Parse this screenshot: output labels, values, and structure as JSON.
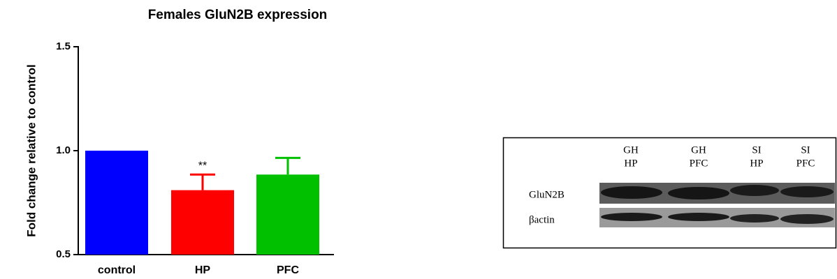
{
  "chart_data": {
    "type": "bar",
    "title": "Females GluN2B expression",
    "y_label": "Fold change relative to control",
    "categories": [
      "control",
      "HP",
      "PFC"
    ],
    "values": [
      1.0,
      0.81,
      0.885
    ],
    "errors": [
      null,
      0.075,
      0.08
    ],
    "colors": [
      "#0000ff",
      "#ff0000",
      "#00c000"
    ],
    "annotations": [
      {
        "category": 1,
        "text": "**"
      }
    ],
    "ylim": [
      0.5,
      1.5
    ],
    "yticks": [
      0.5,
      {
        "value": 1,
        "label": "1.0"
      },
      1.5
    ],
    "grid": false
  },
  "blot": {
    "lanes": [
      [
        "GH",
        "HP"
      ],
      [
        "GH",
        "PFC"
      ],
      [
        "SI",
        "HP"
      ],
      [
        "SI",
        "PFC"
      ]
    ],
    "rows": [
      "GluN2B",
      "βactin"
    ]
  }
}
